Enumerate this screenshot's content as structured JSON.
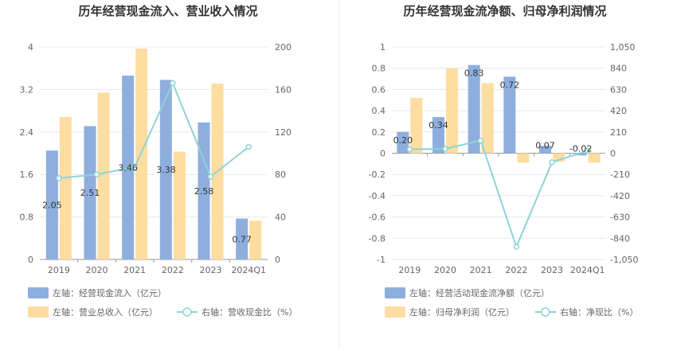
{
  "chart_data": [
    {
      "type": "bar",
      "title": "历年经营现金流入、营业收入情况",
      "categories": [
        "2019",
        "2020",
        "2021",
        "2022",
        "2023",
        "2024Q1"
      ],
      "left_axis": {
        "ticks": [
          "4",
          "3.2",
          "2.4",
          "1.6",
          "0.8",
          "0"
        ],
        "ylim": [
          0,
          4
        ]
      },
      "right_axis": {
        "ticks": [
          "200",
          "160",
          "120",
          "80",
          "40",
          "0"
        ],
        "ylim": [
          0,
          200
        ]
      },
      "grid": true,
      "legend_position": "bottom",
      "series": [
        {
          "name": "左轴：经营现金流入（亿元）",
          "axis": "left",
          "kind": "bar",
          "color": "#8eaedd",
          "values": [
            2.05,
            2.51,
            3.46,
            3.38,
            2.58,
            0.77
          ],
          "labels": [
            "2.05",
            "2.51",
            "3.46",
            "3.38",
            "2.58",
            "0.77"
          ]
        },
        {
          "name": "左轴：营业总收入（亿元）",
          "axis": "left",
          "kind": "bar",
          "color": "#fedda1",
          "values": [
            2.68,
            3.14,
            3.97,
            2.03,
            3.31,
            0.73
          ]
        },
        {
          "name": "右轴：营收现金比（%）",
          "axis": "right",
          "kind": "line",
          "color": "#8fd3d8",
          "values": [
            76.5,
            80,
            87,
            166,
            78,
            106
          ]
        }
      ]
    },
    {
      "type": "bar",
      "title": "历年经营现金流净额、归母净利润情况",
      "categories": [
        "2019",
        "2020",
        "2021",
        "2022",
        "2023",
        "2024Q1"
      ],
      "left_axis": {
        "ticks": [
          "1",
          "0.8",
          "0.6",
          "0.4",
          "0.2",
          "0",
          "-0.2",
          "-0.4",
          "-0.6",
          "-0.8",
          "-1"
        ],
        "ylim": [
          -1,
          1
        ]
      },
      "right_axis": {
        "ticks": [
          "1,050",
          "840",
          "630",
          "420",
          "210",
          "0",
          "-210",
          "-420",
          "-630",
          "-840",
          "-1,050"
        ],
        "ylim": [
          -1050,
          1050
        ]
      },
      "grid": true,
      "legend_position": "bottom",
      "series": [
        {
          "name": "左轴：经营活动现金流净额（亿元）",
          "axis": "left",
          "kind": "bar",
          "color": "#8eaedd",
          "values": [
            0.2,
            0.34,
            0.83,
            0.72,
            0.07,
            -0.02
          ],
          "labels": [
            "0.20",
            "0.34",
            "0.83",
            "0.72",
            "0.07",
            "-0.02"
          ]
        },
        {
          "name": "左轴：归母净利润（亿元）",
          "axis": "left",
          "kind": "bar",
          "color": "#fedda1",
          "values": [
            0.52,
            0.8,
            0.66,
            -0.09,
            -0.08,
            -0.09
          ]
        },
        {
          "name": "右轴：净现比（%）",
          "axis": "right",
          "kind": "line",
          "color": "#8fd3d8",
          "values": [
            38,
            43,
            125,
            -925,
            -90,
            25
          ]
        }
      ]
    }
  ]
}
